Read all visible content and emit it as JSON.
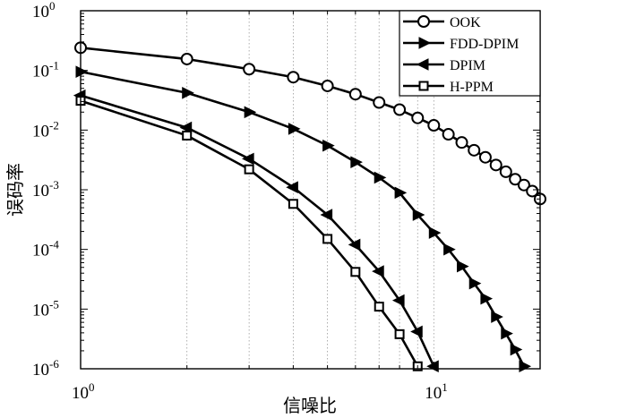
{
  "chart_data": {
    "type": "line",
    "xlabel": "信噪比",
    "ylabel": "误码率",
    "xscale": "log",
    "yscale": "log",
    "xlim": [
      1,
      20
    ],
    "ylim": [
      1e-06,
      1
    ],
    "grid": "x-minor-dotted",
    "legend_position": "top-right",
    "x_tick_labels": [
      {
        "base": "10",
        "exp": "0"
      },
      {
        "base": "10",
        "exp": "1"
      }
    ],
    "y_tick_labels": [
      {
        "base": "10",
        "exp": "0"
      },
      {
        "base": "10",
        "exp": "-1"
      },
      {
        "base": "10",
        "exp": "-2"
      },
      {
        "base": "10",
        "exp": "-3"
      },
      {
        "base": "10",
        "exp": "-4"
      },
      {
        "base": "10",
        "exp": "-5"
      },
      {
        "base": "10",
        "exp": "-6"
      }
    ],
    "series": [
      {
        "name": "OOK",
        "marker": "circle",
        "x": [
          1,
          2,
          3,
          4,
          5,
          6,
          7,
          8,
          9,
          10,
          11,
          12,
          13,
          14,
          15,
          16,
          17,
          18,
          19,
          20
        ],
        "y": [
          0.24,
          0.155,
          0.105,
          0.077,
          0.055,
          0.04,
          0.029,
          0.022,
          0.016,
          0.012,
          0.0085,
          0.0062,
          0.0046,
          0.0035,
          0.0026,
          0.002,
          0.0015,
          0.0012,
          0.00095,
          0.0007
        ]
      },
      {
        "name": "FDD-DPIM",
        "marker": "triangle-right",
        "x": [
          1,
          2,
          3,
          4,
          5,
          6,
          7,
          8,
          9,
          10,
          11,
          12,
          13,
          14,
          15,
          16,
          17,
          18
        ],
        "y": [
          0.095,
          0.042,
          0.02,
          0.0105,
          0.0055,
          0.0029,
          0.0016,
          0.00089,
          0.00038,
          0.00019,
          0.0001,
          5.2e-05,
          2.7e-05,
          1.5e-05,
          7.4e-06,
          3.9e-06,
          2.1e-06,
          1.1e-06
        ]
      },
      {
        "name": "DPIM",
        "marker": "triangle-left",
        "x": [
          1,
          2,
          3,
          4,
          5,
          6,
          7,
          8,
          9,
          10
        ],
        "y": [
          0.038,
          0.011,
          0.0033,
          0.0011,
          0.00038,
          0.00012,
          4.3e-05,
          1.4e-05,
          4.2e-06,
          1.1e-06
        ]
      },
      {
        "name": "H-PPM",
        "marker": "square",
        "x": [
          1,
          2,
          3,
          4,
          5,
          6,
          7,
          8,
          9
        ],
        "y": [
          0.031,
          0.0081,
          0.0022,
          0.00058,
          0.00015,
          4.2e-05,
          1.1e-05,
          3.8e-06,
          1.1e-06
        ]
      }
    ]
  }
}
